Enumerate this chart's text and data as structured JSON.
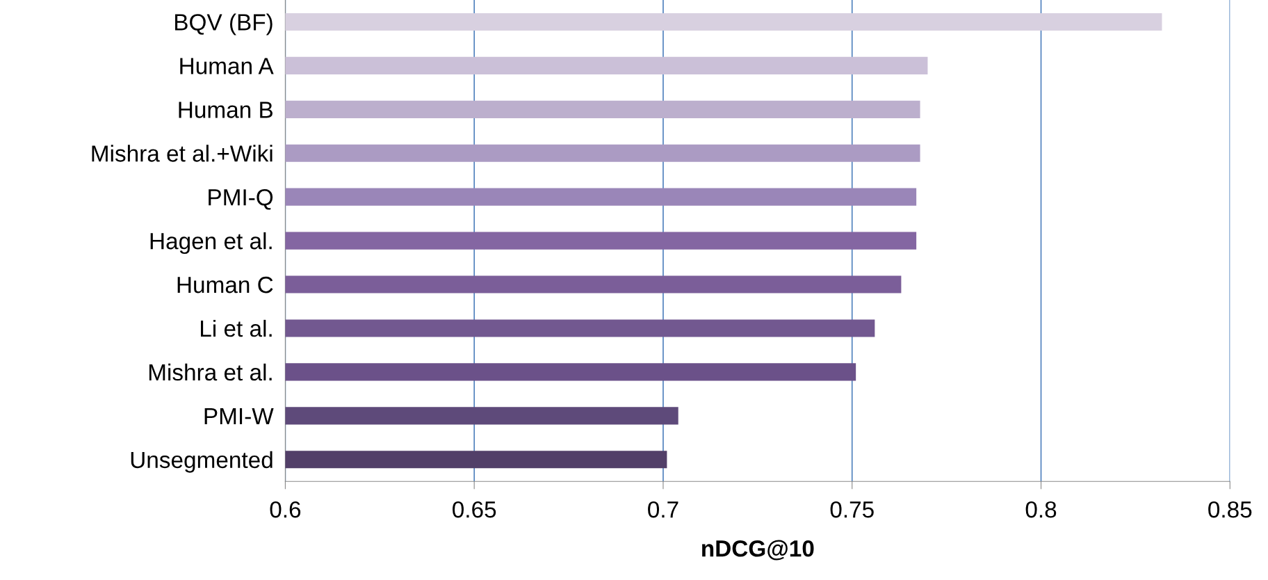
{
  "chart_data": {
    "type": "bar",
    "orientation": "horizontal",
    "xlabel": "nDCG@10",
    "categories": [
      "BQV (BF)",
      "Human A",
      "Human B",
      "Mishra et al.+Wiki",
      "PMI-Q",
      "Hagen et al.",
      "Human C",
      "Li et al.",
      "Mishra et al.",
      "PMI-W",
      "Unsegmented"
    ],
    "values": [
      0.832,
      0.77,
      0.768,
      0.768,
      0.767,
      0.767,
      0.763,
      0.756,
      0.751,
      0.704,
      0.701
    ],
    "colors": [
      "#d8d0e0",
      "#cbc0d8",
      "#bcafcd",
      "#ab9bc3",
      "#9a86b8",
      "#8466a2",
      "#7b5e99",
      "#725890",
      "#6b5189",
      "#5e4a7a",
      "#523f68"
    ],
    "xlim": [
      0.6,
      0.85
    ],
    "xticks": [
      0.6,
      0.65,
      0.7,
      0.75,
      0.8,
      0.85
    ],
    "grid": "x"
  }
}
